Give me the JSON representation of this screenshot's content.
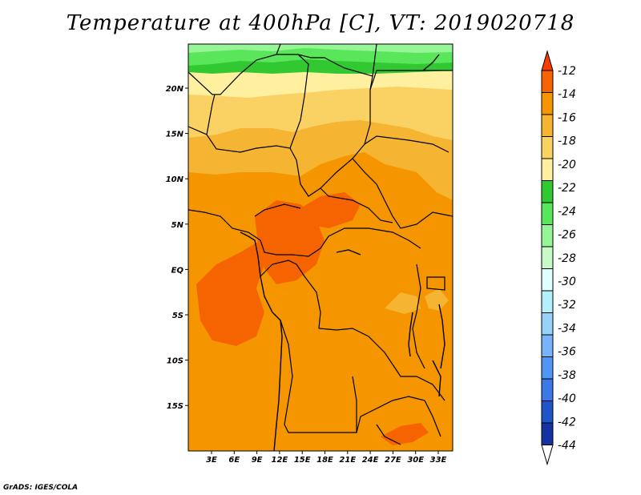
{
  "title": "Temperature at 400hPa [C], VT: 2019020718",
  "credit": "GrADS: IGES/COLA",
  "lat_ticks": [
    "20N",
    "15N",
    "10N",
    "5N",
    "EQ",
    "5S",
    "10S",
    "15S"
  ],
  "lon_ticks": [
    "3E",
    "6E",
    "9E",
    "12E",
    "15E",
    "18E",
    "21E",
    "24E",
    "27E",
    "30E",
    "33E"
  ],
  "colorbar": {
    "labels": [
      "-12",
      "-14",
      "-16",
      "-18",
      "-20",
      "-22",
      "-24",
      "-26",
      "-28",
      "-30",
      "-32",
      "-34",
      "-36",
      "-38",
      "-40",
      "-42",
      "-44"
    ],
    "colors": [
      "#fa3c00",
      "#f56400",
      "#f59600",
      "#f5b432",
      "#fad264",
      "#fff0a0",
      "#32c832",
      "#5ae65a",
      "#96f596",
      "#c8fac8",
      "#e1ffff",
      "#b4f0fa",
      "#96d2fa",
      "#78b4fa",
      "#5096f5",
      "#3c78e6",
      "#1e55c8",
      "#1432a0",
      "#0a0a78"
    ]
  },
  "colors": {
    "warm_max": "#fa5014",
    "orange": "#f59600",
    "light_orange": "#f5b432",
    "yellow": "#fad264",
    "pale_yellow": "#fff0a0",
    "green": "#32c832",
    "light_green": "#96f596"
  }
}
